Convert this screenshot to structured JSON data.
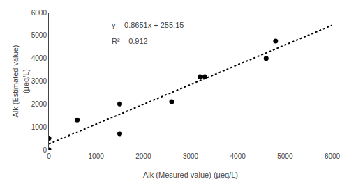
{
  "chart_data": {
    "type": "scatter",
    "xlabel": "Alk (Mesured value) (μeq/L)",
    "ylabel": "Alk (Estimated value)\n(μeq/L)",
    "xlim": [
      0,
      6000
    ],
    "ylim": [
      0,
      6000
    ],
    "xticks": [
      0,
      1000,
      2000,
      3000,
      4000,
      5000,
      6000
    ],
    "yticks": [
      0,
      1000,
      2000,
      3000,
      4000,
      5000,
      6000
    ],
    "grid": false,
    "series": [
      {
        "type": "scatter",
        "color": "black",
        "marker": "circle",
        "x": [
          0,
          0,
          600,
          1500,
          1500,
          2600,
          3200,
          3300,
          4600,
          4800
        ],
        "values": [
          0,
          500,
          1300,
          2000,
          700,
          2100,
          3200,
          3200,
          4000,
          4750
        ]
      },
      {
        "type": "line",
        "color": "black",
        "line_style": "dotted",
        "x": [
          0,
          6000
        ],
        "values": [
          255.15,
          5445.75
        ]
      }
    ],
    "annotations": [
      {
        "text": "y = 0.8651x + 255.15",
        "x": 1300,
        "y": 5700
      },
      {
        "text": "R² = 0.912",
        "x": 1300,
        "y": 5000
      }
    ]
  }
}
